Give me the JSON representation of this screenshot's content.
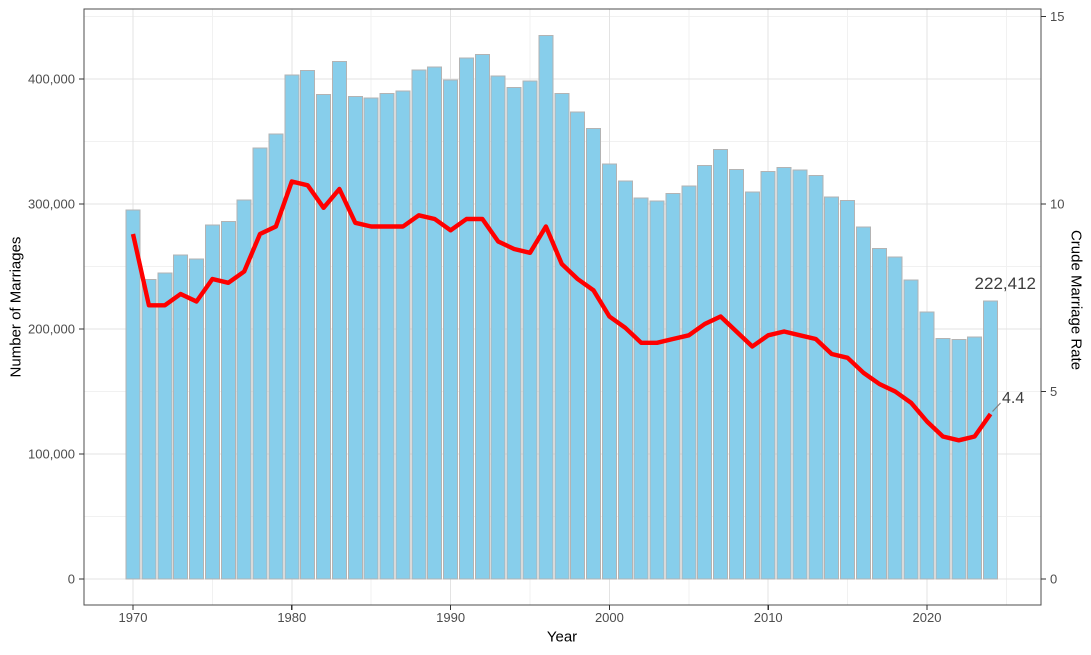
{
  "chart_data": {
    "type": "bar",
    "title": "",
    "x": [
      1970,
      1971,
      1972,
      1973,
      1974,
      1975,
      1976,
      1977,
      1978,
      1979,
      1980,
      1981,
      1982,
      1983,
      1984,
      1985,
      1986,
      1987,
      1988,
      1989,
      1990,
      1991,
      1992,
      1993,
      1994,
      1995,
      1996,
      1997,
      1998,
      1999,
      2000,
      2001,
      2002,
      2003,
      2004,
      2005,
      2006,
      2007,
      2008,
      2009,
      2010,
      2011,
      2012,
      2013,
      2014,
      2015,
      2016,
      2017,
      2018,
      2019,
      2020,
      2021,
      2022,
      2023,
      2024
    ],
    "series": [
      {
        "name": "Number of Marriages",
        "chart_type": "bar",
        "axis": "left",
        "fill_color": "#87CEEB",
        "stroke_color": "#B3B3B3",
        "values": [
          295137,
          239457,
          244780,
          259112,
          256173,
          283226,
          285910,
          303156,
          344634,
          355846,
          403031,
          406795,
          387468,
          413970,
          385861,
          384686,
          388463,
          390524,
          407302,
          409786,
          399312,
          416872,
          419774,
          402593,
          393121,
          398484,
          434911,
          388591,
          373500,
          360407,
          332090,
          318407,
          304877,
          302503,
          308598,
          314304,
          330634,
          343559,
          327715,
          309759,
          326104,
          329087,
          327073,
          322807,
          305507,
          302828,
          281635,
          264455,
          257622,
          239159,
          213502,
          192507,
          191690,
          193657,
          222412
        ]
      },
      {
        "name": "Crude Marriage Rate",
        "chart_type": "line",
        "axis": "right",
        "color": "#FF0000",
        "values": [
          9.2,
          7.3,
          7.3,
          7.6,
          7.4,
          8.0,
          7.9,
          8.2,
          9.2,
          9.4,
          10.6,
          10.5,
          9.9,
          10.4,
          9.5,
          9.4,
          9.4,
          9.4,
          9.7,
          9.6,
          9.3,
          9.6,
          9.6,
          9.0,
          8.8,
          8.7,
          9.4,
          8.4,
          8.0,
          7.7,
          7.0,
          6.7,
          6.3,
          6.3,
          6.4,
          6.5,
          6.8,
          7.0,
          6.6,
          6.2,
          6.5,
          6.6,
          6.5,
          6.4,
          6.0,
          5.9,
          5.5,
          5.2,
          5.0,
          4.7,
          4.2,
          3.8,
          3.7,
          3.8,
          4.4
        ]
      }
    ],
    "axes": {
      "x": {
        "label": "Year",
        "major_ticks": [
          1970,
          1980,
          1990,
          2000,
          2010,
          2020
        ],
        "major_tick_labels": [
          "1970",
          "1980",
          "1990",
          "2000",
          "2010",
          "2020"
        ],
        "minor_gridlines": [
          1975,
          1985,
          1995,
          2005,
          2015,
          2025
        ]
      },
      "left": {
        "label": "Number of Marriages",
        "ticks": [
          0,
          100000,
          200000,
          300000,
          400000
        ],
        "tick_labels": [
          "0",
          "100,000",
          "200,000",
          "300,000",
          "400,000"
        ],
        "minor_gridlines": [
          50000,
          150000,
          250000,
          350000,
          450000
        ],
        "range": [
          0,
          456000
        ]
      },
      "right": {
        "label": "Crude Marriage Rate",
        "ticks": [
          0,
          5,
          10,
          15
        ],
        "tick_labels": [
          "0",
          "5",
          "10",
          "15"
        ],
        "range": [
          0,
          15.2
        ]
      }
    },
    "annotations": [
      {
        "text": "222,412",
        "year": 2024,
        "series": "Number of Marriages"
      },
      {
        "text": "4.4",
        "year": 2024,
        "series": "Crude Marriage Rate"
      }
    ],
    "grid": true,
    "legend": "none",
    "colors": {
      "bar_fill": "#87CEEB",
      "bar_stroke": "#B3B3B3",
      "line": "#FF0000",
      "panel_border": "#4D4D4D",
      "major_grid": "#E3E3E3",
      "minor_grid": "#F1F1F1",
      "tick_text": "#4D4D4D",
      "annotation_text": "#3D3D3D",
      "leader_line": "#808080"
    }
  }
}
